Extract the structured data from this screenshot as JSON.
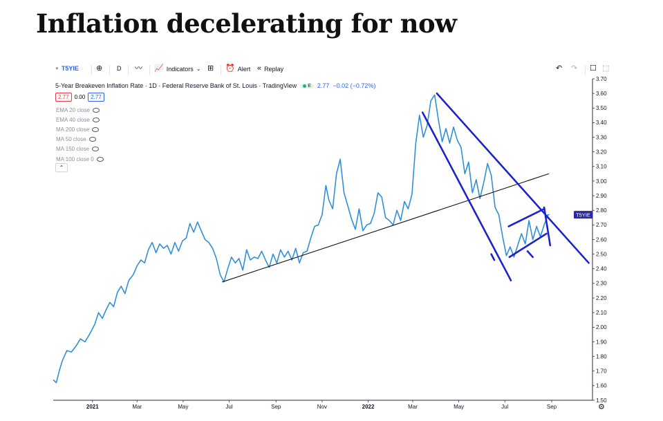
{
  "slide": {
    "title": "Inflation decelerating for now"
  },
  "toolbar": {
    "symbol": "T5YIE",
    "interval": "D",
    "indicators_label": "Indicators",
    "alert_label": "Alert",
    "replay_label": "Replay",
    "icons": [
      "add-symbol-icon",
      "chart-type-icon",
      "indicators-icon",
      "layouts-icon",
      "alert-icon",
      "replay-icon",
      "undo-icon",
      "redo-icon",
      "fullscreen-icon",
      "snapshot-icon"
    ]
  },
  "legend": {
    "title": "5-Year Breakeven Inflation Rate · 1D · Federal Reserve Bank of St. Louis · TradingView",
    "e_badge": "E",
    "price": "2.77",
    "change": "−0.02 (−0.72%)",
    "sell": "2.77",
    "spread": "0.00",
    "buy": "2.77",
    "indicators": [
      "EMA 20 close",
      "EMA 40 close",
      "MA 200 close",
      "MA 50 close",
      "MA 150 close",
      "MA 100 close 0"
    ],
    "collapse_glyph": "⌃"
  },
  "chart_data": {
    "type": "line",
    "xlabel": "",
    "ylabel": "",
    "ylim": [
      1.5,
      3.7
    ],
    "y_ticks": [
      1.5,
      1.6,
      1.7,
      1.8,
      1.9,
      2.0,
      2.1,
      2.2,
      2.3,
      2.4,
      2.5,
      2.6,
      2.7,
      2.8,
      2.9,
      3.0,
      3.1,
      3.2,
      3.3,
      3.4,
      3.5,
      3.6,
      3.7
    ],
    "y_tick_labels": [
      "1.50",
      "1.60",
      "1.70",
      "1.80",
      "1.90",
      "2.00",
      "2.10",
      "2.20",
      "2.30",
      "2.40",
      "2.50",
      "2.60",
      "2.70",
      "2.80",
      "2.90",
      "3.00",
      "3.10",
      "3.20",
      "3.30",
      "3.40",
      "3.50",
      "3.60",
      "3.70"
    ],
    "x_range": [
      "2020-11-10",
      "2022-10-25"
    ],
    "x_ticks": [
      {
        "date": "2021-01-01",
        "label": "2021",
        "bold": true
      },
      {
        "date": "2021-03-01",
        "label": "Mar"
      },
      {
        "date": "2021-05-01",
        "label": "May"
      },
      {
        "date": "2021-07-01",
        "label": "Jul"
      },
      {
        "date": "2021-09-01",
        "label": "Sep"
      },
      {
        "date": "2021-11-01",
        "label": "Nov"
      },
      {
        "date": "2022-01-01",
        "label": "2022",
        "bold": true
      },
      {
        "date": "2022-03-01",
        "label": "Mar"
      },
      {
        "date": "2022-05-01",
        "label": "May"
      },
      {
        "date": "2022-07-01",
        "label": "Jul"
      },
      {
        "date": "2022-09-01",
        "label": "Sep"
      }
    ],
    "last_value_label": "T5YIE",
    "last_value": 2.77,
    "line_color": "#2f8fd8",
    "series": [
      {
        "x": [
          "2020-11-10",
          "2020-11-14",
          "2020-11-18",
          "2020-11-22",
          "2020-11-28",
          "2020-12-04",
          "2020-12-10",
          "2020-12-16",
          "2020-12-22",
          "2020-12-28",
          "2021-01-04",
          "2021-01-09",
          "2021-01-14",
          "2021-01-19",
          "2021-01-24",
          "2021-01-29",
          "2021-02-03",
          "2021-02-08",
          "2021-02-13",
          "2021-02-18",
          "2021-02-24",
          "2021-03-01",
          "2021-03-06",
          "2021-03-11",
          "2021-03-16",
          "2021-03-21",
          "2021-03-26",
          "2021-03-31",
          "2021-04-05",
          "2021-04-10",
          "2021-04-15",
          "2021-04-20",
          "2021-04-25",
          "2021-04-30",
          "2021-05-05",
          "2021-05-10",
          "2021-05-15",
          "2021-05-20",
          "2021-05-25",
          "2021-05-30",
          "2021-06-04",
          "2021-06-09",
          "2021-06-14",
          "2021-06-19",
          "2021-06-24",
          "2021-06-29",
          "2021-07-04",
          "2021-07-09",
          "2021-07-14",
          "2021-07-19",
          "2021-07-24",
          "2021-07-29",
          "2021-08-03",
          "2021-08-08",
          "2021-08-13",
          "2021-08-18",
          "2021-08-23",
          "2021-08-28",
          "2021-09-02",
          "2021-09-07",
          "2021-09-12",
          "2021-09-17",
          "2021-09-22",
          "2021-09-27",
          "2021-10-02",
          "2021-10-07",
          "2021-10-12",
          "2021-10-17",
          "2021-10-22",
          "2021-10-27",
          "2021-11-01",
          "2021-11-06",
          "2021-11-10",
          "2021-11-15",
          "2021-11-20",
          "2021-11-25",
          "2021-11-30",
          "2021-12-05",
          "2021-12-10",
          "2021-12-15",
          "2021-12-20",
          "2021-12-25",
          "2021-12-30",
          "2022-01-04",
          "2022-01-09",
          "2022-01-14",
          "2022-01-19",
          "2022-01-24",
          "2022-01-29",
          "2022-02-03",
          "2022-02-08",
          "2022-02-13",
          "2022-02-18",
          "2022-02-23",
          "2022-02-28",
          "2022-03-05",
          "2022-03-10",
          "2022-03-15",
          "2022-03-20",
          "2022-03-25",
          "2022-03-30",
          "2022-04-04",
          "2022-04-09",
          "2022-04-14",
          "2022-04-19",
          "2022-04-24",
          "2022-04-29",
          "2022-05-04",
          "2022-05-09",
          "2022-05-14",
          "2022-05-19",
          "2022-05-24",
          "2022-05-29",
          "2022-06-03",
          "2022-06-08",
          "2022-06-13",
          "2022-06-18",
          "2022-06-23",
          "2022-06-28",
          "2022-07-03",
          "2022-07-08",
          "2022-07-13",
          "2022-07-18",
          "2022-07-23",
          "2022-07-28",
          "2022-08-02",
          "2022-08-07",
          "2022-08-12",
          "2022-08-17",
          "2022-08-22",
          "2022-08-27",
          "2022-08-29"
        ],
        "y": [
          1.64,
          1.62,
          1.7,
          1.77,
          1.84,
          1.83,
          1.87,
          1.92,
          1.9,
          1.95,
          2.02,
          2.1,
          2.06,
          2.12,
          2.17,
          2.14,
          2.24,
          2.28,
          2.23,
          2.32,
          2.36,
          2.42,
          2.46,
          2.44,
          2.53,
          2.58,
          2.51,
          2.57,
          2.54,
          2.56,
          2.5,
          2.58,
          2.52,
          2.59,
          2.61,
          2.71,
          2.65,
          2.72,
          2.66,
          2.6,
          2.58,
          2.54,
          2.47,
          2.36,
          2.31,
          2.4,
          2.48,
          2.44,
          2.47,
          2.39,
          2.53,
          2.46,
          2.48,
          2.47,
          2.52,
          2.46,
          2.41,
          2.5,
          2.44,
          2.53,
          2.48,
          2.52,
          2.46,
          2.54,
          2.44,
          2.51,
          2.52,
          2.61,
          2.69,
          2.7,
          2.77,
          2.97,
          2.87,
          2.81,
          3.05,
          3.15,
          2.92,
          2.83,
          2.74,
          2.67,
          2.81,
          2.66,
          2.7,
          2.71,
          2.78,
          2.92,
          2.89,
          2.75,
          2.73,
          2.7,
          2.8,
          2.73,
          2.86,
          2.81,
          2.91,
          3.26,
          3.45,
          3.3,
          3.38,
          3.55,
          3.59,
          3.42,
          3.27,
          3.36,
          3.26,
          3.37,
          3.28,
          3.23,
          3.05,
          3.13,
          2.92,
          3.01,
          2.88,
          2.99,
          3.12,
          3.04,
          2.82,
          2.77,
          2.62,
          2.49,
          2.55,
          2.48,
          2.56,
          2.64,
          2.57,
          2.73,
          2.6,
          2.69,
          2.62,
          2.7,
          2.77,
          2.77
        ]
      }
    ],
    "drawings": [
      {
        "kind": "trend-line",
        "color": "#111111",
        "points": [
          [
            "2021-06-22",
            2.31
          ],
          [
            "2022-08-28",
            3.05
          ]
        ]
      },
      {
        "kind": "channel-upper",
        "color": "#1d22cc",
        "points": [
          [
            "2022-04-02",
            3.6
          ],
          [
            "2022-10-20",
            2.44
          ]
        ]
      },
      {
        "kind": "channel-lower",
        "color": "#1d22cc",
        "points": [
          [
            "2022-03-14",
            3.47
          ],
          [
            "2022-07-09",
            2.32
          ]
        ]
      },
      {
        "kind": "flag-upper",
        "color": "#1d22cc",
        "points": [
          [
            "2022-07-06",
            2.69
          ],
          [
            "2022-08-22",
            2.81
          ]
        ]
      },
      {
        "kind": "flag-lower",
        "color": "#1d22cc",
        "points": [
          [
            "2022-07-07",
            2.48
          ],
          [
            "2022-08-25",
            2.64
          ]
        ]
      },
      {
        "kind": "flag-right",
        "color": "#1d22cc",
        "points": [
          [
            "2022-08-22",
            2.82
          ],
          [
            "2022-08-30",
            2.56
          ]
        ]
      },
      {
        "kind": "tick-left",
        "color": "#1d22cc",
        "points": [
          [
            "2022-06-13",
            2.5
          ],
          [
            "2022-06-17",
            2.46
          ]
        ]
      },
      {
        "kind": "tick-bottom",
        "color": "#1d22cc",
        "points": [
          [
            "2022-07-31",
            2.52
          ],
          [
            "2022-08-07",
            2.48
          ]
        ]
      }
    ]
  }
}
